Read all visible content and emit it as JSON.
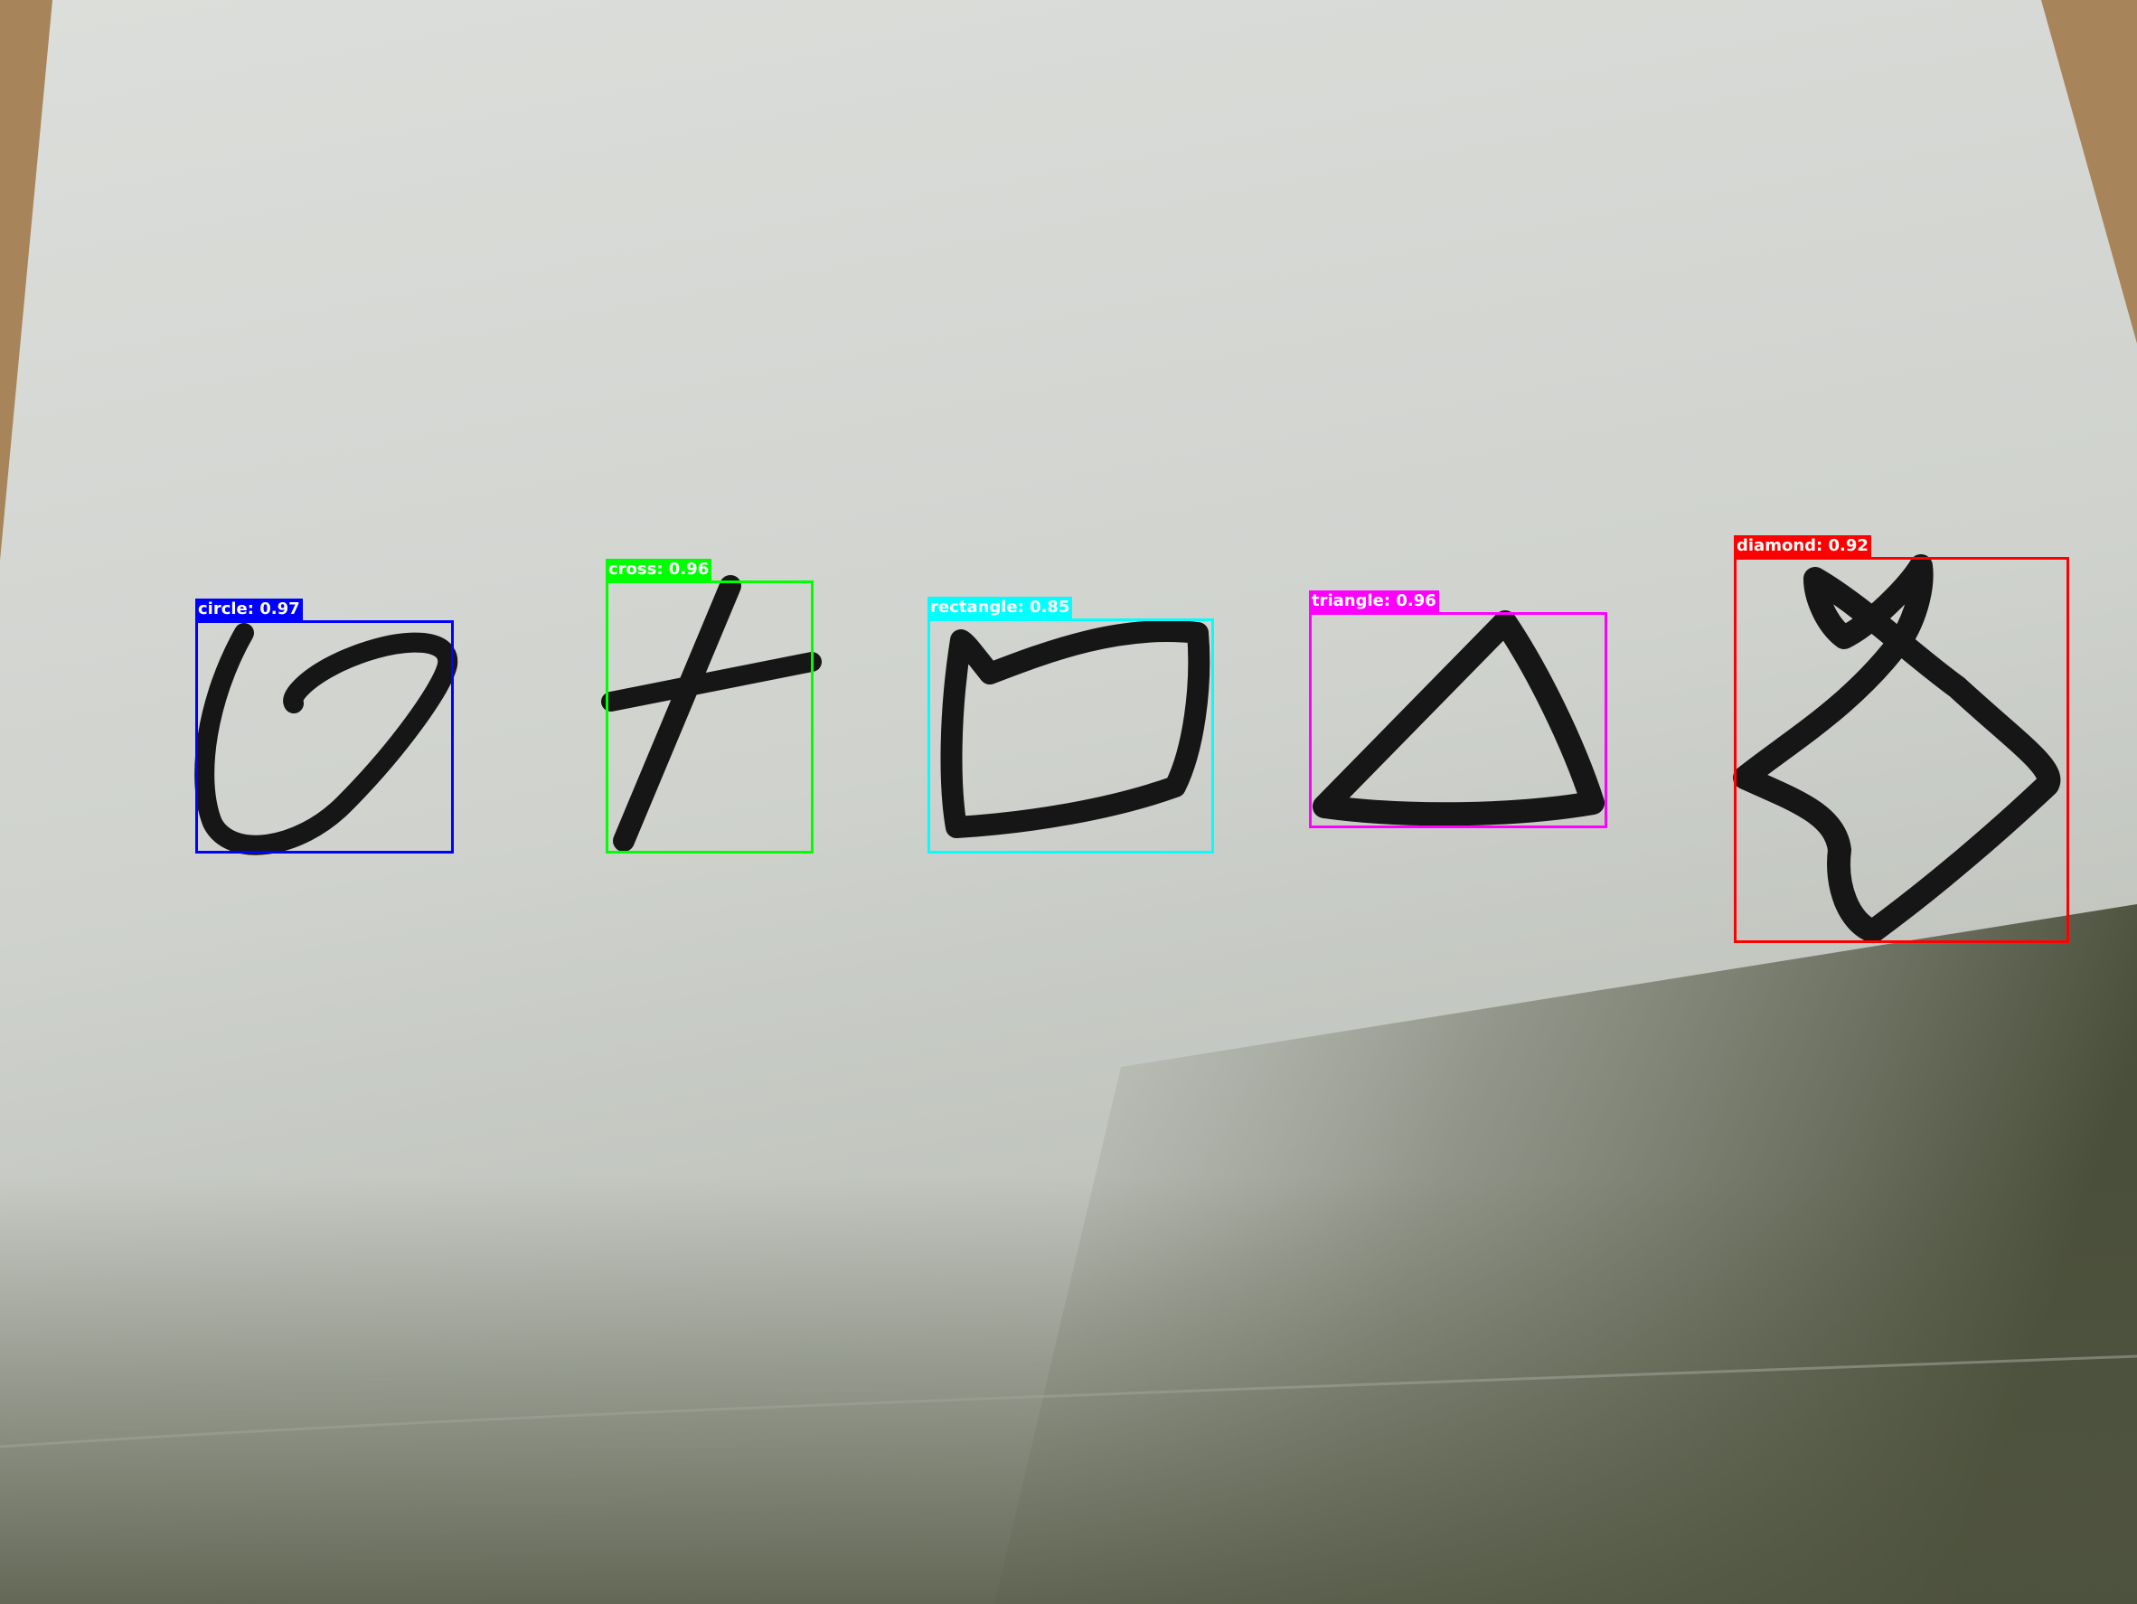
{
  "detections": [
    {
      "label": "circle",
      "score": "0.97",
      "text": "circle: 0.97",
      "color": "#0000ff"
    },
    {
      "label": "cross",
      "score": "0.96",
      "text": "cross: 0.96",
      "color": "#00ff00"
    },
    {
      "label": "rectangle",
      "score": "0.85",
      "text": "rectangle: 0.85",
      "color": "#00ffff"
    },
    {
      "label": "triangle",
      "score": "0.96",
      "text": "triangle: 0.96",
      "color": "#ff00ff"
    },
    {
      "label": "diamond",
      "score": "0.92",
      "text": "diamond: 0.92",
      "color": "#ff0000"
    }
  ],
  "colors": {
    "paper": "#d7d9d5",
    "paper_shadow": "#555a45",
    "desk": "#a8845a",
    "ink": "#161616"
  }
}
